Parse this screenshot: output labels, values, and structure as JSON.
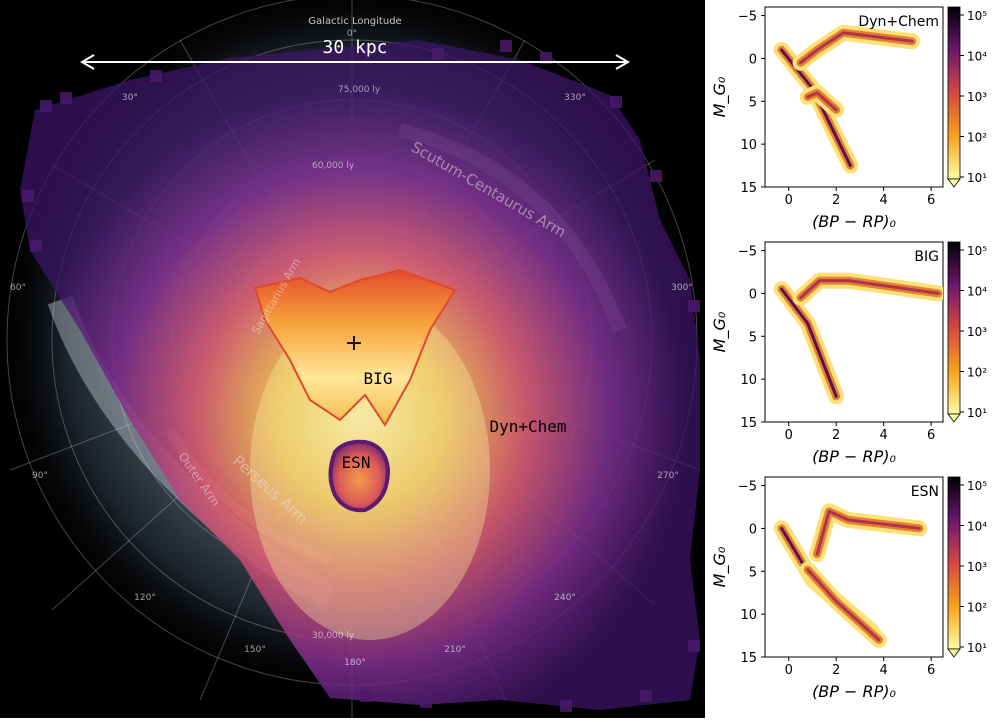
{
  "map": {
    "scale_label": "30 kpc",
    "axis_title": "Galactic Longitude",
    "longitude_labels": [
      "0°",
      "30°",
      "60°",
      "90°",
      "120°",
      "150°",
      "180°",
      "210°",
      "240°",
      "270°",
      "300°",
      "330°"
    ],
    "distance_labels": [
      "75,000 ly",
      "60,000 ly",
      "30,000 ly"
    ],
    "arm_labels": [
      "Scutum-Centaurus Arm",
      "Perseus Arm",
      "Outer Arm",
      "Sagittarius Arm"
    ],
    "region_labels": {
      "big": "BIG",
      "dyn_chem": "Dyn+Chem",
      "esn": "ESN"
    },
    "center_marker": "+",
    "colors": {
      "background": "#000000",
      "galaxy": "#8fa6b8",
      "low_density": "#4b1a6e",
      "mid_density": "#c0436b",
      "high_density": "#f3b53a",
      "peak_density": "#fff3b0"
    }
  },
  "chart_data": [
    {
      "type": "heatmap",
      "title": "Dyn+Chem",
      "xlabel": "(BP − RP)₀",
      "ylabel": "M_G₀",
      "xlim": [
        -1,
        6.5
      ],
      "ylim": [
        15,
        -6
      ],
      "xticks": [
        "0",
        "2",
        "4",
        "6"
      ],
      "yticks": [
        "−5",
        "0",
        "5",
        "10",
        "15"
      ],
      "colorbar": {
        "scale": "log",
        "ticks": [
          "10¹",
          "10²",
          "10³",
          "10⁴",
          "10⁵"
        ],
        "extend": "min"
      },
      "regions": [
        {
          "name": "main sequence",
          "points": [
            [
              -0.3,
              -1
            ],
            [
              1.0,
              3.5
            ],
            [
              2.6,
              12.5
            ]
          ]
        },
        {
          "name": "giant branch",
          "points": [
            [
              0.5,
              0.5
            ],
            [
              1.2,
              -1
            ],
            [
              2.3,
              -3
            ],
            [
              5.2,
              -2
            ]
          ]
        },
        {
          "name": "red clump",
          "points": [
            [
              0.8,
              4.5
            ],
            [
              1.2,
              4.0
            ],
            [
              2.0,
              6.0
            ]
          ]
        }
      ]
    },
    {
      "type": "heatmap",
      "title": "BIG",
      "xlabel": "(BP − RP)₀",
      "ylabel": "M_G₀",
      "xlim": [
        -1,
        6.5
      ],
      "ylim": [
        15,
        -6
      ],
      "xticks": [
        "0",
        "2",
        "4",
        "6"
      ],
      "yticks": [
        "−5",
        "0",
        "5",
        "10",
        "15"
      ],
      "colorbar": {
        "scale": "log",
        "ticks": [
          "10¹",
          "10²",
          "10³",
          "10⁴",
          "10⁵"
        ],
        "extend": "min"
      },
      "regions": [
        {
          "name": "main sequence",
          "points": [
            [
              -0.3,
              -0.5
            ],
            [
              0.8,
              3.5
            ],
            [
              2.0,
              12
            ]
          ]
        },
        {
          "name": "giant branch",
          "points": [
            [
              0.5,
              0.5
            ],
            [
              1.3,
              -1.5
            ],
            [
              2.5,
              -1.5
            ],
            [
              6.3,
              0
            ]
          ]
        }
      ]
    },
    {
      "type": "heatmap",
      "title": "ESN",
      "xlabel": "(BP − RP)₀",
      "ylabel": "M_G₀",
      "xlim": [
        -1,
        6.5
      ],
      "ylim": [
        15,
        -6
      ],
      "xticks": [
        "0",
        "2",
        "4",
        "6"
      ],
      "yticks": [
        "−5",
        "0",
        "5",
        "10",
        "15"
      ],
      "colorbar": {
        "scale": "log",
        "ticks": [
          "10¹",
          "10²",
          "10³",
          "10⁴",
          "10⁵"
        ],
        "extend": "min"
      },
      "regions": [
        {
          "name": "main sequence",
          "points": [
            [
              -0.3,
              0
            ],
            [
              1.0,
              6
            ],
            [
              3.5,
              12
            ]
          ]
        },
        {
          "name": "giant branch",
          "points": [
            [
              1.2,
              3
            ],
            [
              1.7,
              -2
            ],
            [
              2.5,
              -1
            ],
            [
              5.5,
              0
            ]
          ]
        },
        {
          "name": "binary sequence",
          "points": [
            [
              0.8,
              4.8
            ],
            [
              2.0,
              8.5
            ],
            [
              3.8,
              13
            ]
          ]
        }
      ]
    }
  ]
}
